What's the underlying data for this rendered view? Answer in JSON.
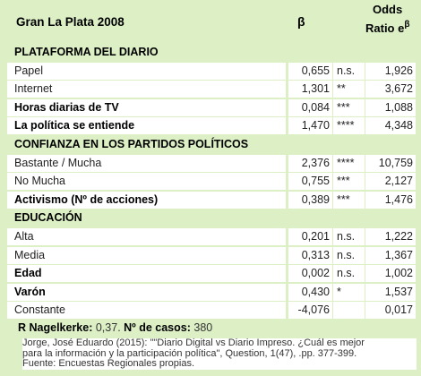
{
  "header": {
    "title": "Gran La Plata 2008",
    "beta": "β",
    "odds_line1": "Odds",
    "odds_line2": "Ratio e",
    "odds_sup": "β"
  },
  "rows": [
    {
      "type": "section",
      "label": "PLATAFORMA DEL DIARIO"
    },
    {
      "type": "row",
      "label": "Papel",
      "beta": "0,655",
      "sig": "n.s.",
      "odds": "1,926",
      "bold": false
    },
    {
      "type": "row",
      "label": "Internet",
      "beta": "1,301",
      "sig": "**",
      "odds": "3,672",
      "bold": false
    },
    {
      "type": "row",
      "label": "Horas diarias de  TV",
      "beta": "0,084",
      "sig": "***",
      "odds": "1,088",
      "bold": true
    },
    {
      "type": "row",
      "label": "La política se entiende",
      "beta": "1,470",
      "sig": "****",
      "odds": "4,348",
      "bold": true
    },
    {
      "type": "section",
      "label": "CONFIANZA EN LOS PARTIDOS POLÍTICOS"
    },
    {
      "type": "row",
      "label": "Bastante / Mucha",
      "beta": "2,376",
      "sig": "****",
      "odds": "10,759",
      "bold": false
    },
    {
      "type": "row",
      "label": "No Mucha",
      "beta": "0,755",
      "sig": "***",
      "odds": "2,127",
      "bold": false
    },
    {
      "type": "row",
      "label": "Activismo (Nº de acciones)",
      "beta": "0,389",
      "sig": "***",
      "odds": "1,476",
      "bold": true
    },
    {
      "type": "section",
      "label": "EDUCACIÓN"
    },
    {
      "type": "row",
      "label": "Alta",
      "beta": "0,201",
      "sig": "n.s.",
      "odds": "1,222",
      "bold": false
    },
    {
      "type": "row",
      "label": "Media",
      "beta": "0,313",
      "sig": "n.s.",
      "odds": "1,367",
      "bold": false
    },
    {
      "type": "row",
      "label": "Edad",
      "beta": "0,002",
      "sig": "n.s.",
      "odds": "1,002",
      "bold": true
    },
    {
      "type": "row",
      "label": "Varón",
      "beta": "0,430",
      "sig": "*",
      "odds": "1,537",
      "bold": true
    },
    {
      "type": "row",
      "label": "Constante",
      "beta": "-4,076",
      "sig": "",
      "odds": "0,017",
      "bold": false
    }
  ],
  "footer": {
    "r_label": "R Nagelkerke:",
    "r_value": "0,37.",
    "n_label": "Nº de casos:",
    "n_value": "380"
  },
  "source": {
    "line1": "Jorge, José Eduardo (2015): \"\"Diario Digital vs Diario Impreso. ¿Cuál es mejor",
    "line2": "para la información y la participación política\", Question, 1(47), .pp. 377-399.",
    "line3": "Fuente: Encuestas Regionales propias."
  }
}
